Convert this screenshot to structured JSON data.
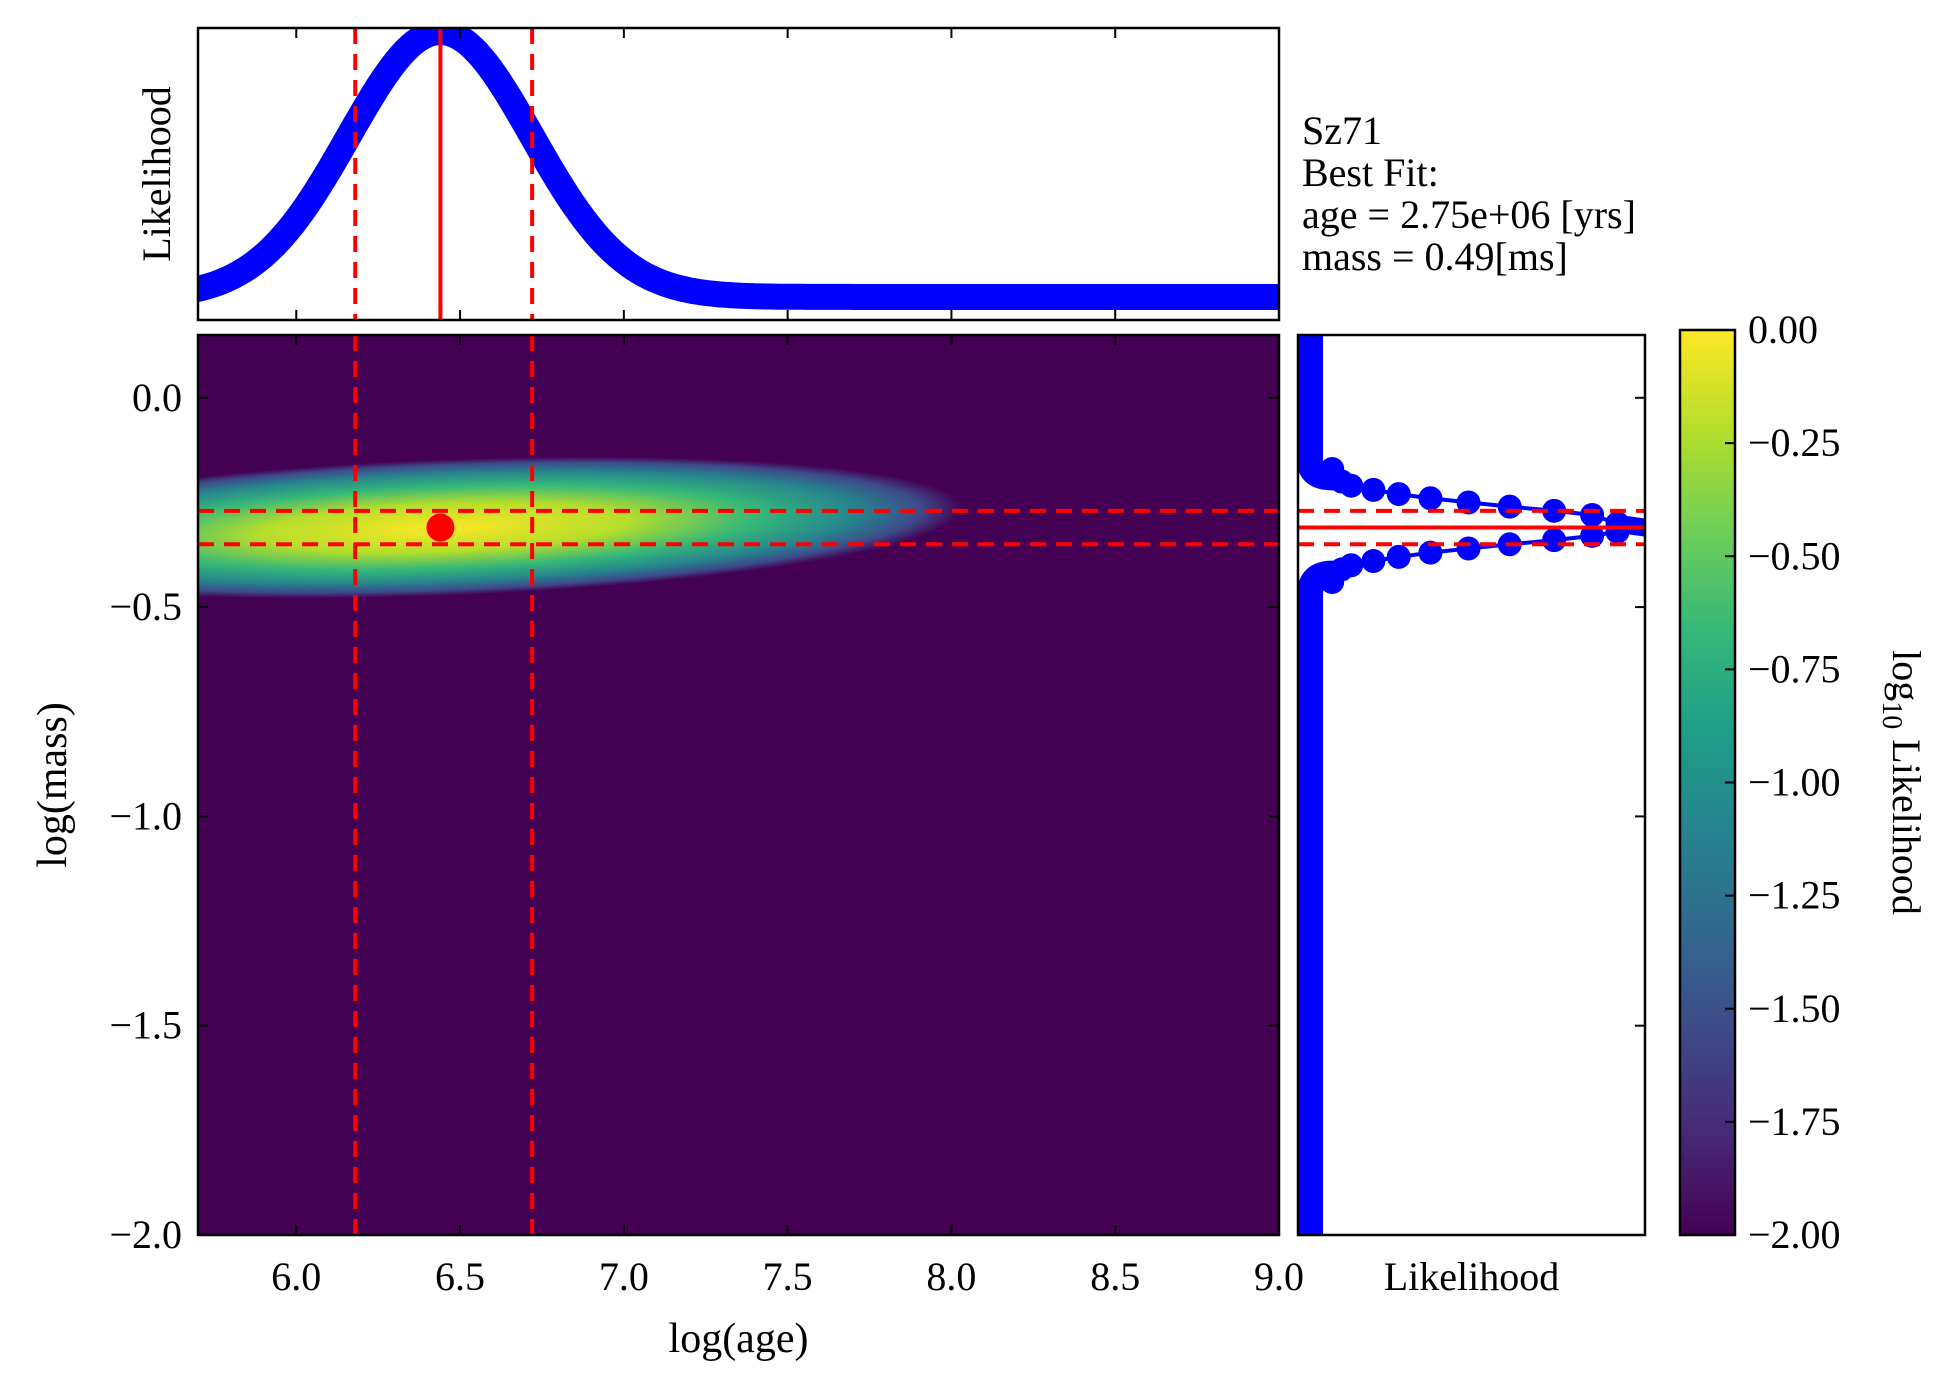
{
  "info": {
    "object_name": "Sz71",
    "best_fit_label": "Best Fit:",
    "age_line": "age = 2.75e+06 [yrs]",
    "mass_line": "mass = 0.49[ms]"
  },
  "chart_data": [
    {
      "panel": "age-marginal",
      "type": "line",
      "ylabel": "Likelihood",
      "x_range": [
        5.7,
        9.0
      ],
      "y_range": [
        0,
        1.0
      ],
      "series_color": "#0000ff",
      "peak_x": 6.44,
      "sigma": 0.28,
      "floor": 0.08,
      "best_fit_x": 6.44,
      "bounds_x": [
        6.18,
        6.72
      ]
    },
    {
      "panel": "joint-likelihood",
      "type": "heatmap",
      "xlabel": "log(age)",
      "ylabel": "log(mass)",
      "x_range": [
        5.7,
        9.0
      ],
      "y_range": [
        -2.0,
        0.15
      ],
      "x_ticks": [
        "6.0",
        "6.5",
        "7.0",
        "7.5",
        "8.0",
        "8.5",
        "9.0"
      ],
      "y_ticks": [
        "0.0",
        "−0.5",
        "−1.0",
        "−1.5",
        "−2.0"
      ],
      "best_fit": [
        6.44,
        -0.31
      ],
      "age_bounds": [
        6.18,
        6.72
      ],
      "mass_bounds": [
        -0.27,
        -0.35
      ],
      "background_value": -2.0,
      "marker_color": "#ff0000"
    },
    {
      "panel": "mass-marginal",
      "type": "scatter",
      "xlabel": "Likelihood",
      "y_range": [
        -2.0,
        0.15
      ],
      "series_color": "#0000ff",
      "peak_y": -0.31,
      "best_fit_y": -0.31,
      "bounds_y": [
        -0.27,
        -0.35
      ],
      "upper_branch_points": [
        [
          0.07,
          -0.17
        ],
        [
          0.1,
          -0.2
        ],
        [
          0.13,
          -0.21
        ],
        [
          0.2,
          -0.22
        ],
        [
          0.28,
          -0.23
        ],
        [
          0.38,
          -0.24
        ],
        [
          0.5,
          -0.25
        ],
        [
          0.63,
          -0.26
        ],
        [
          0.77,
          -0.27
        ],
        [
          0.89,
          -0.28
        ],
        [
          0.97,
          -0.3
        ]
      ],
      "lower_branch_points": [
        [
          0.07,
          -0.44
        ],
        [
          0.1,
          -0.41
        ],
        [
          0.13,
          -0.4
        ],
        [
          0.2,
          -0.39
        ],
        [
          0.28,
          -0.38
        ],
        [
          0.38,
          -0.37
        ],
        [
          0.5,
          -0.36
        ],
        [
          0.63,
          -0.35
        ],
        [
          0.77,
          -0.34
        ],
        [
          0.89,
          -0.33
        ],
        [
          0.97,
          -0.32
        ]
      ]
    },
    {
      "panel": "colorbar",
      "type": "heatmap",
      "label_main": "log",
      "label_sub": "10",
      "label_rest": " Likelihood",
      "range": [
        -2.0,
        0.0
      ],
      "ticks": [
        "0.00",
        "−0.25",
        "−0.50",
        "−0.75",
        "−1.00",
        "−1.25",
        "−1.50",
        "−1.75",
        "−2.00"
      ],
      "colormap_stops": [
        "#440154",
        "#482878",
        "#3e4989",
        "#31688e",
        "#26828e",
        "#1f9e89",
        "#35b779",
        "#6ece58",
        "#b5de2b",
        "#fde725"
      ]
    }
  ]
}
